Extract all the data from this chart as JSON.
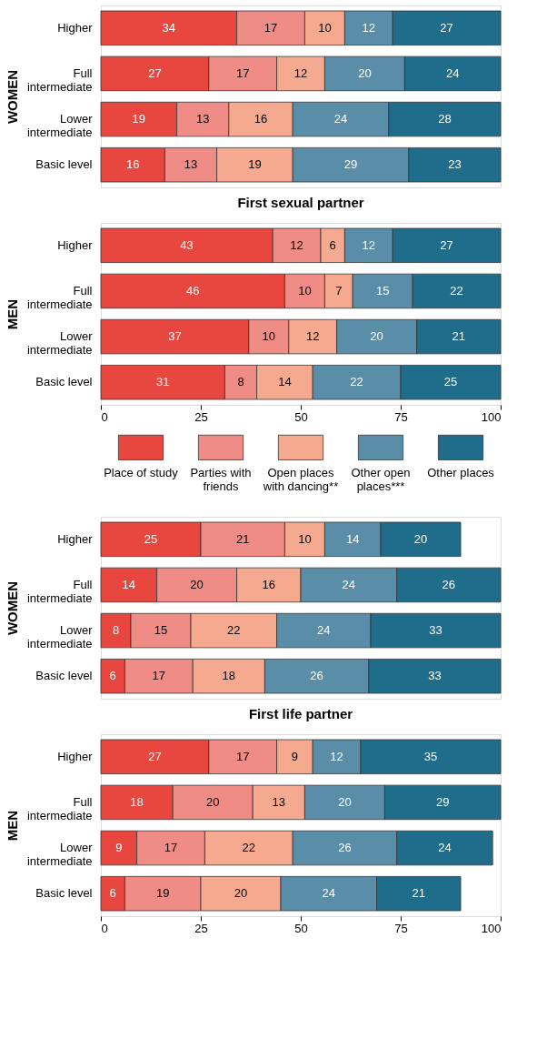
{
  "chart_data": [
    {
      "type": "bar",
      "orientation": "horizontal",
      "stacked": true,
      "ylabel": "WOMEN",
      "categories": [
        "Higher",
        "Full intermediate",
        "Lower intermediate",
        "Basic level"
      ],
      "xlim": [
        0,
        100
      ],
      "xticks": [
        0,
        25,
        50,
        75,
        100
      ],
      "tick_labels": "y",
      "data_labels": true,
      "grid": false,
      "series": [
        {
          "color": "#e8473f",
          "values": [
            34,
            27,
            19,
            16
          ]
        },
        {
          "color": "#f08c86",
          "values": [
            17,
            17,
            13,
            13
          ]
        },
        {
          "color": "#f5aa90",
          "values": [
            10,
            12,
            16,
            19
          ]
        },
        {
          "color": "#5a8ea8",
          "values": [
            12,
            20,
            24,
            29
          ]
        },
        {
          "color": "#1f6d8a",
          "values": [
            27,
            24,
            28,
            23
          ]
        }
      ]
    },
    {
      "type": "bar",
      "orientation": "horizontal",
      "stacked": true,
      "title": "First sexual partner",
      "ylabel": "MEN",
      "categories": [
        "Higher",
        "Full intermediate",
        "Lower intermediate",
        "Basic level"
      ],
      "xlim": [
        0,
        100
      ],
      "xticks": [
        0,
        25,
        50,
        75,
        100
      ],
      "data_labels": true,
      "grid": false,
      "series": [
        {
          "color": "#e8473f",
          "values": [
            43,
            46,
            37,
            31
          ]
        },
        {
          "color": "#f08c86",
          "values": [
            12,
            10,
            10,
            8
          ]
        },
        {
          "color": "#f5aa90",
          "values": [
            6,
            7,
            12,
            14
          ]
        },
        {
          "color": "#5a8ea8",
          "values": [
            12,
            15,
            20,
            22
          ]
        },
        {
          "color": "#1f6d8a",
          "values": [
            27,
            22,
            21,
            25
          ]
        }
      ]
    },
    {
      "type": "bar",
      "orientation": "horizontal",
      "stacked": true,
      "ylabel": "WOMEN",
      "categories": [
        "Higher",
        "Full intermediate",
        "Lower intermediate",
        "Basic level"
      ],
      "xlim": [
        0,
        100
      ],
      "xticks": [
        0,
        25,
        50,
        75,
        100
      ],
      "tick_labels": "y",
      "grid": false,
      "legend": "top",
      "series": [
        {
          "name": "Place of study",
          "color": "#e8473f",
          "values": [
            25,
            14,
            7.5,
            6
          ],
          "value_labels": [
            "25",
            "14",
            "8",
            "6"
          ]
        },
        {
          "name": "Parties with friends",
          "color": "#f08c86",
          "values": [
            21,
            20,
            15,
            17
          ],
          "value_labels": [
            "21",
            "20",
            "15",
            "17"
          ]
        },
        {
          "name": "Open places with dancing**",
          "color": "#f5aa90",
          "values": [
            10,
            16,
            21.5,
            18
          ],
          "value_labels": [
            "10",
            "16",
            "22",
            "18"
          ]
        },
        {
          "name": "Other open places***",
          "color": "#5a8ea8",
          "values": [
            14,
            24,
            23.5,
            26
          ],
          "value_labels": [
            "14",
            "24",
            "24",
            "26"
          ]
        },
        {
          "name": "Other places",
          "color": "#1f6d8a",
          "values": [
            20,
            26,
            32.5,
            33
          ],
          "value_labels": [
            "20",
            "26",
            "33",
            "33"
          ]
        }
      ]
    },
    {
      "type": "bar",
      "orientation": "horizontal",
      "stacked": true,
      "title": "First life partner",
      "ylabel": "MEN",
      "categories": [
        "Higher",
        "Full intermediate",
        "Lower intermediate",
        "Basic level"
      ],
      "xlim": [
        0,
        100
      ],
      "xticks": [
        0,
        25,
        50,
        75,
        100
      ],
      "data_labels": true,
      "grid": false,
      "series": [
        {
          "color": "#e8473f",
          "values": [
            27,
            18,
            9,
            6
          ]
        },
        {
          "color": "#f08c86",
          "values": [
            17,
            20,
            17,
            19
          ]
        },
        {
          "color": "#f5aa90",
          "values": [
            9,
            13,
            22,
            20
          ]
        },
        {
          "color": "#5a8ea8",
          "values": [
            12,
            20,
            26,
            24
          ]
        },
        {
          "color": "#1f6d8a",
          "values": [
            35,
            29,
            24,
            21
          ]
        }
      ]
    }
  ]
}
